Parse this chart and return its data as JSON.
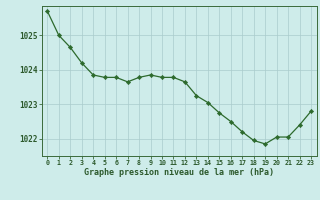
{
  "x": [
    0,
    1,
    2,
    3,
    4,
    5,
    6,
    7,
    8,
    9,
    10,
    11,
    12,
    13,
    14,
    15,
    16,
    17,
    18,
    19,
    20,
    21,
    22,
    23
  ],
  "y": [
    1025.7,
    1025.0,
    1024.65,
    1024.2,
    1023.85,
    1023.78,
    1023.78,
    1023.65,
    1023.78,
    1023.85,
    1023.78,
    1023.78,
    1023.65,
    1023.25,
    1023.05,
    1022.75,
    1022.5,
    1022.2,
    1021.95,
    1021.85,
    1022.05,
    1022.05,
    1022.4,
    1022.8
  ],
  "line_color": "#2d6a2d",
  "marker_color": "#2d6a2d",
  "bg_color": "#ceecea",
  "grid_color": "#aacccc",
  "axis_color": "#3a6a3a",
  "xlabel": "Graphe pression niveau de la mer (hPa)",
  "xlabel_color": "#2d5a2d",
  "tick_color": "#2d5a2d",
  "ylim": [
    1021.5,
    1025.85
  ],
  "yticks": [
    1022,
    1023,
    1024,
    1025
  ],
  "xtick_labels": [
    "0",
    "1",
    "2",
    "3",
    "4",
    "5",
    "6",
    "7",
    "8",
    "9",
    "10",
    "11",
    "12",
    "13",
    "14",
    "15",
    "16",
    "17",
    "18",
    "19",
    "20",
    "21",
    "22",
    "23"
  ]
}
